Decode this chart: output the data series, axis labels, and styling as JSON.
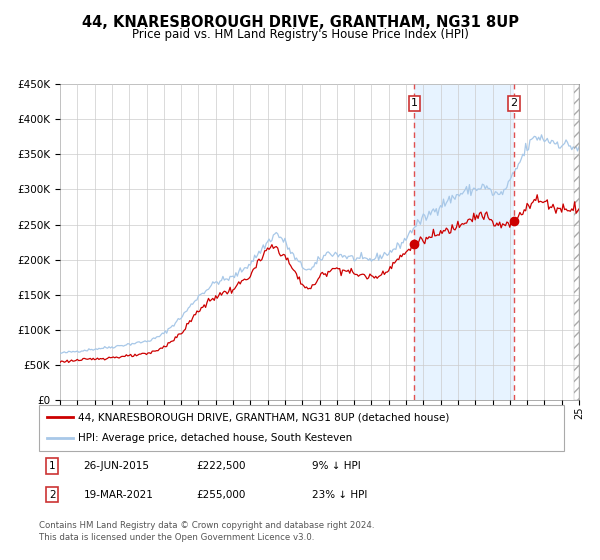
{
  "title": "44, KNARESBOROUGH DRIVE, GRANTHAM, NG31 8UP",
  "subtitle": "Price paid vs. HM Land Registry's House Price Index (HPI)",
  "legend_line1": "44, KNARESBOROUGH DRIVE, GRANTHAM, NG31 8UP (detached house)",
  "legend_line2": "HPI: Average price, detached house, South Kesteven",
  "annotation1_label": "1",
  "annotation1_date": "26-JUN-2015",
  "annotation1_price": "£222,500",
  "annotation1_hpi": "9% ↓ HPI",
  "annotation2_label": "2",
  "annotation2_date": "19-MAR-2021",
  "annotation2_price": "£255,000",
  "annotation2_hpi": "23% ↓ HPI",
  "footer_line1": "Contains HM Land Registry data © Crown copyright and database right 2024.",
  "footer_line2": "This data is licensed under the Open Government Licence v3.0.",
  "hpi_color": "#a8c8e8",
  "price_color": "#cc0000",
  "vline_color": "#e05050",
  "shade_color": "#ddeeff",
  "background_color": "#ffffff",
  "plot_bg_color": "#ffffff",
  "grid_color": "#cccccc",
  "ylim": [
    0,
    450000
  ],
  "yticks": [
    0,
    50000,
    100000,
    150000,
    200000,
    250000,
    300000,
    350000,
    400000,
    450000
  ],
  "xlim_start": 1995,
  "xlim_end": 2025,
  "sale1_year": 2015.49,
  "sale1_value": 222500,
  "sale2_year": 2021.22,
  "sale2_value": 255000,
  "hpi_anchors": {
    "1995.0": 67000,
    "1996.0": 70000,
    "1997.0": 73000,
    "1998.0": 76000,
    "1999.0": 80000,
    "2000.0": 84000,
    "2000.5": 88000,
    "2001.0": 95000,
    "2002.0": 118000,
    "2003.0": 148000,
    "2003.5": 158000,
    "2004.0": 168000,
    "2005.0": 175000,
    "2006.0": 195000,
    "2007.0": 225000,
    "2007.5": 238000,
    "2008.0": 225000,
    "2008.5": 205000,
    "2009.0": 190000,
    "2009.5": 185000,
    "2010.0": 200000,
    "2010.5": 210000,
    "2011.0": 208000,
    "2011.5": 205000,
    "2012.0": 202000,
    "2012.5": 200000,
    "2013.0": 200000,
    "2013.5": 205000,
    "2014.0": 210000,
    "2014.5": 218000,
    "2015.0": 230000,
    "2015.5": 248000,
    "2016.0": 258000,
    "2016.5": 268000,
    "2017.0": 278000,
    "2017.5": 285000,
    "2018.0": 292000,
    "2018.5": 298000,
    "2019.0": 300000,
    "2019.5": 305000,
    "2020.0": 295000,
    "2020.5": 292000,
    "2021.0": 310000,
    "2021.5": 335000,
    "2022.0": 360000,
    "2022.5": 375000,
    "2023.0": 372000,
    "2023.5": 368000,
    "2024.0": 365000,
    "2024.5": 362000,
    "2025.0": 358000
  },
  "price_anchors": {
    "1995.0": 55000,
    "1996.0": 57000,
    "1997.0": 59000,
    "1998.0": 61000,
    "1999.0": 63000,
    "2000.0": 66000,
    "2000.5": 70000,
    "2001.0": 76000,
    "2002.0": 95000,
    "2003.0": 128000,
    "2003.5": 138000,
    "2004.0": 148000,
    "2005.0": 158000,
    "2006.0": 178000,
    "2007.0": 215000,
    "2007.5": 218000,
    "2008.0": 205000,
    "2008.5": 185000,
    "2009.0": 165000,
    "2009.5": 158000,
    "2010.0": 175000,
    "2010.5": 185000,
    "2011.0": 188000,
    "2011.5": 185000,
    "2012.0": 180000,
    "2012.5": 178000,
    "2013.0": 175000,
    "2013.5": 178000,
    "2014.0": 188000,
    "2014.5": 200000,
    "2015.0": 210000,
    "2015.49": 222500,
    "2016.0": 228000,
    "2016.5": 232000,
    "2017.0": 238000,
    "2017.5": 242000,
    "2018.0": 250000,
    "2018.5": 258000,
    "2019.0": 262000,
    "2019.5": 265000,
    "2020.0": 252000,
    "2020.5": 248000,
    "2021.0": 250000,
    "2021.22": 255000,
    "2021.5": 262000,
    "2022.0": 278000,
    "2022.5": 285000,
    "2023.0": 282000,
    "2023.5": 275000,
    "2024.0": 272000,
    "2024.5": 274000,
    "2025.0": 274000
  }
}
